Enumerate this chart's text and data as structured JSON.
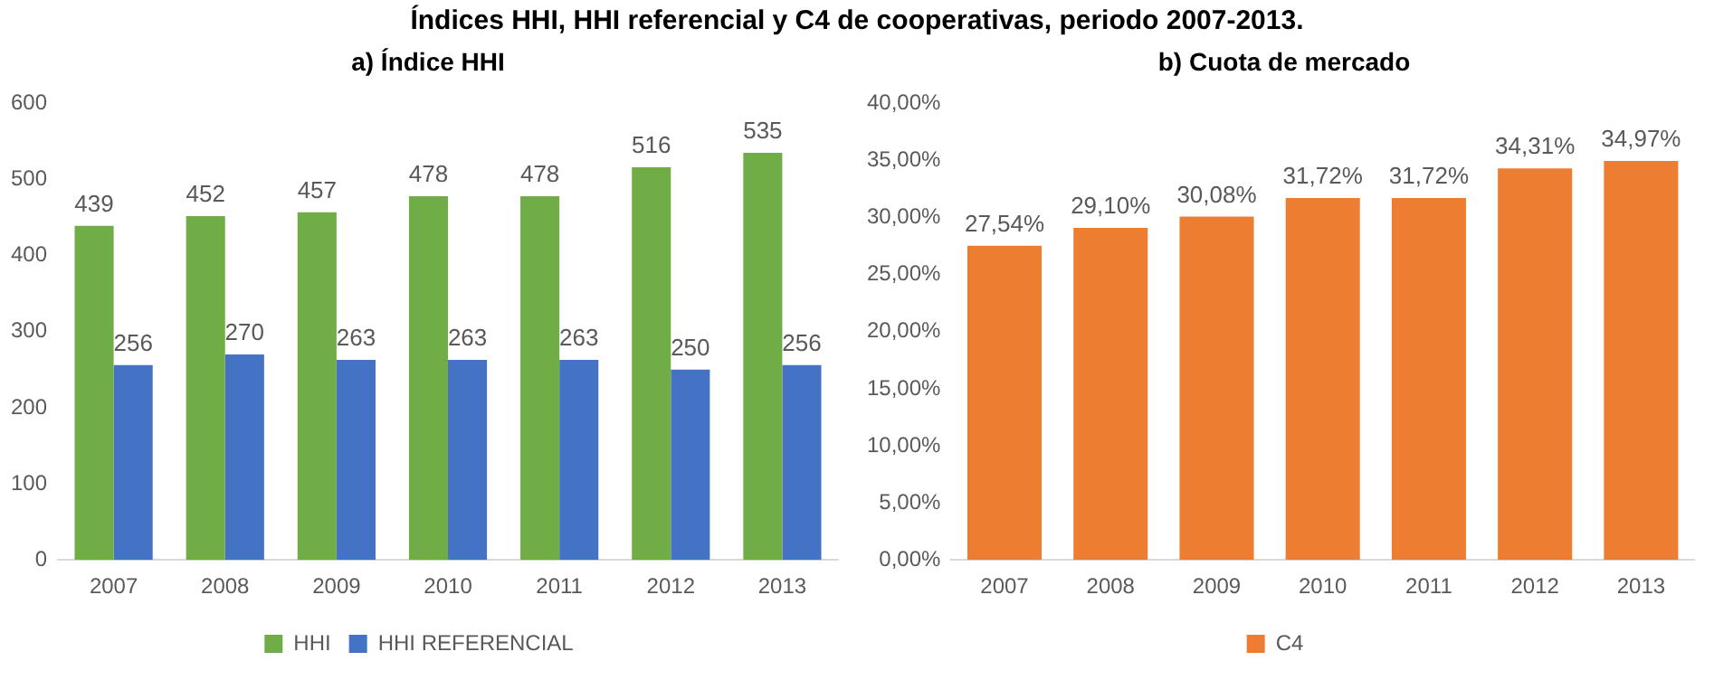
{
  "chart_data": [
    {
      "type": "bar",
      "title": "Índices HHI, HHI referencial y C4 de cooperativas, periodo 2007-2013.",
      "subtitle": "a) Índice HHI",
      "categories": [
        "2007",
        "2008",
        "2009",
        "2010",
        "2011",
        "2012",
        "2013"
      ],
      "series": [
        {
          "name": "HHI",
          "color": "#70ad47",
          "values": [
            439,
            452,
            457,
            478,
            478,
            516,
            535
          ]
        },
        {
          "name": "HHI REFERENCIAL",
          "color": "#4472c4",
          "values": [
            256,
            270,
            263,
            263,
            263,
            250,
            256
          ]
        }
      ],
      "ylim": [
        0,
        600
      ],
      "yticks": [
        0,
        100,
        200,
        300,
        400,
        500,
        600
      ],
      "data_labels": true,
      "legend": "bottom"
    },
    {
      "type": "bar",
      "title": "b) Cuota de mercado",
      "categories": [
        "2007",
        "2008",
        "2009",
        "2010",
        "2011",
        "2012",
        "2013"
      ],
      "series": [
        {
          "name": "C4",
          "color": "#ed7d31",
          "values": [
            27.54,
            29.1,
            30.08,
            31.72,
            31.72,
            34.31,
            34.97
          ],
          "value_labels": [
            "27,54%",
            "29,10%",
            "30,08%",
            "31,72%",
            "31,72%",
            "34,31%",
            "34,97%"
          ]
        }
      ],
      "ylim": [
        0,
        40
      ],
      "yticks": [
        {
          "value": 0,
          "label": "0,00%"
        },
        {
          "value": 5,
          "label": "5,00%"
        },
        {
          "value": 10,
          "label": "10,00%"
        },
        {
          "value": 15,
          "label": "15,00%"
        },
        {
          "value": 20,
          "label": "20,00%"
        },
        {
          "value": 25,
          "label": "25,00%"
        },
        {
          "value": 30,
          "label": "30,00%"
        },
        {
          "value": 35,
          "label": "35,00%"
        },
        {
          "value": 40,
          "label": "40,00%"
        }
      ],
      "legend": "bottom"
    }
  ]
}
